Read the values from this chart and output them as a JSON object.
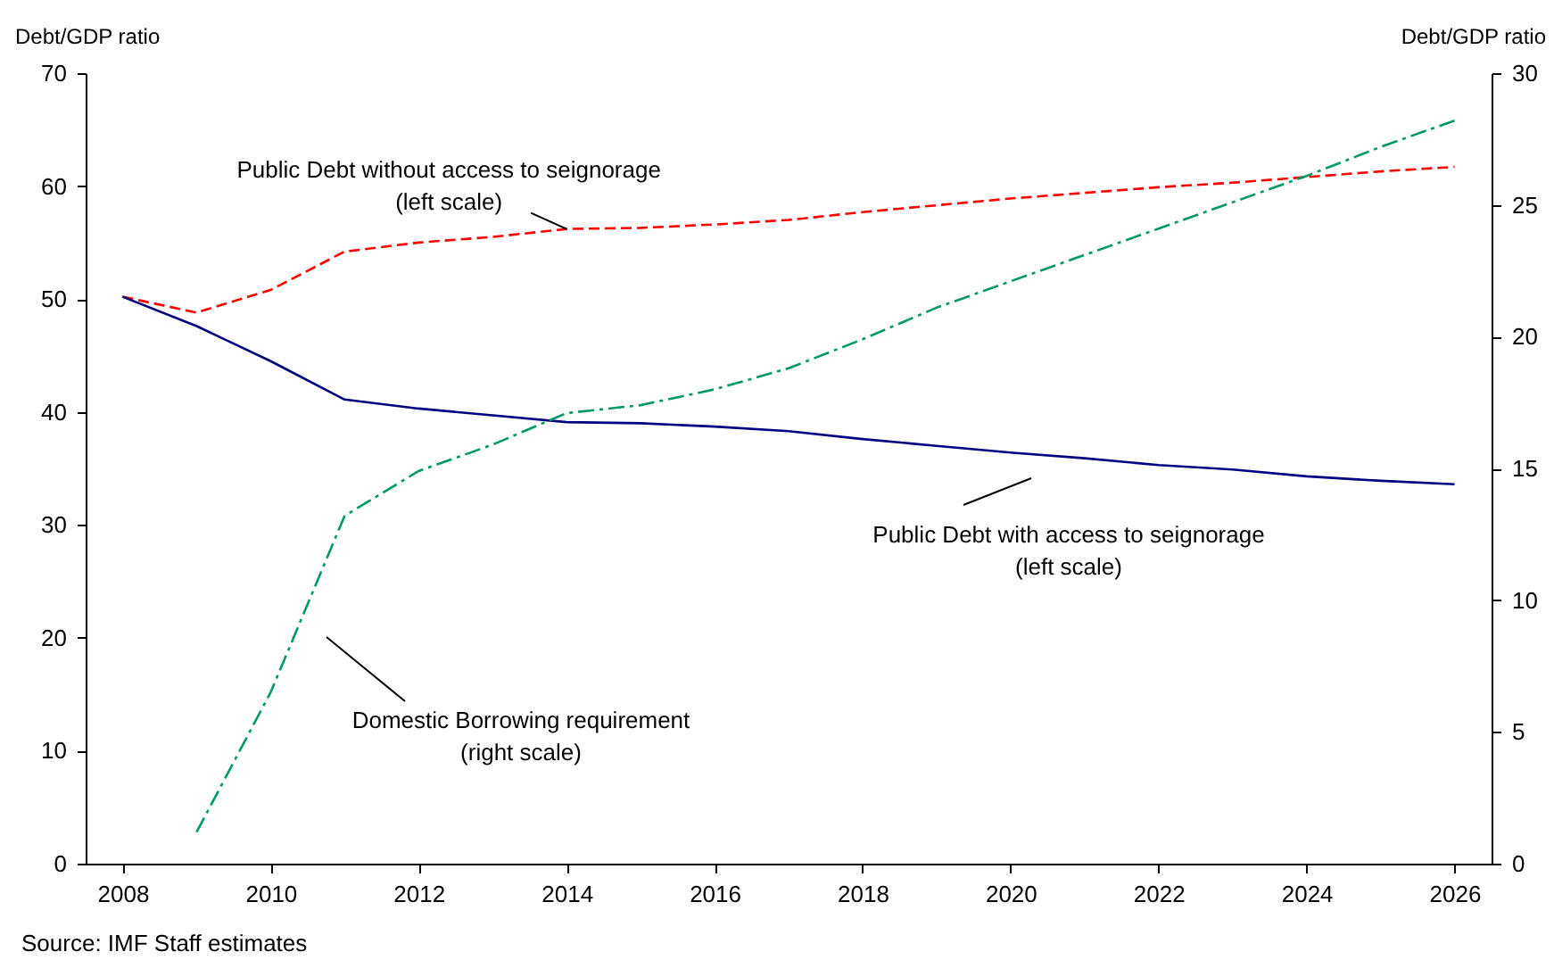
{
  "chart_data": {
    "type": "line",
    "xlabel": null,
    "ylabel": "Debt/GDP ratio",
    "y2label": "Debt/GDP ratio",
    "x": [
      2008,
      2009,
      2010,
      2011,
      2012,
      2013,
      2014,
      2015,
      2016,
      2017,
      2018,
      2019,
      2020,
      2021,
      2022,
      2023,
      2024,
      2025,
      2026
    ],
    "xlim": [
      2007.5,
      2026.5
    ],
    "xticks": [
      2008,
      2010,
      2012,
      2014,
      2016,
      2018,
      2020,
      2022,
      2024,
      2026
    ],
    "ylim": [
      0,
      70
    ],
    "yticks": [
      0,
      10,
      20,
      30,
      40,
      50,
      60,
      70
    ],
    "y2lim": [
      0,
      30
    ],
    "y2ticks": [
      0,
      5,
      10,
      15,
      20,
      25,
      30
    ],
    "series": [
      {
        "color": "#ff0000",
        "line_style": "dashed",
        "values": [
          50.2,
          48.8,
          50.8,
          54.2,
          55.0,
          55.5,
          56.2,
          56.3,
          56.6,
          57.0,
          57.7,
          58.3,
          58.9,
          59.4,
          59.9,
          60.3,
          60.8,
          61.3,
          61.7
        ]
      },
      {
        "color": "#000080",
        "line_style": "solid",
        "values": [
          50.2,
          47.6,
          44.5,
          41.1,
          40.3,
          39.7,
          39.1,
          39.0,
          38.7,
          38.3,
          37.6,
          37.0,
          36.4,
          35.9,
          35.3,
          34.9,
          34.3,
          33.9,
          33.6
        ]
      },
      {
        "color": "#009966",
        "line_style": "dashdot",
        "axis": "y2",
        "values": [
          null,
          1.2,
          6.5,
          13.2,
          14.9,
          15.9,
          17.1,
          17.4,
          18.0,
          18.8,
          19.9,
          21.1,
          22.1,
          23.1,
          24.1,
          25.1,
          26.1,
          27.2,
          28.2
        ]
      }
    ],
    "annotations": [
      {
        "text": "Public Debt without access to seignorage\n(left scale)",
        "x": 2014,
        "y": 56.2
      },
      "Public Debt with access to seignorage\n(left scale)",
      "Domestic Borrowing requirement\n(right scale)",
      "Source: IMF Staff estimates"
    ],
    "grid": false,
    "marker": "none"
  }
}
